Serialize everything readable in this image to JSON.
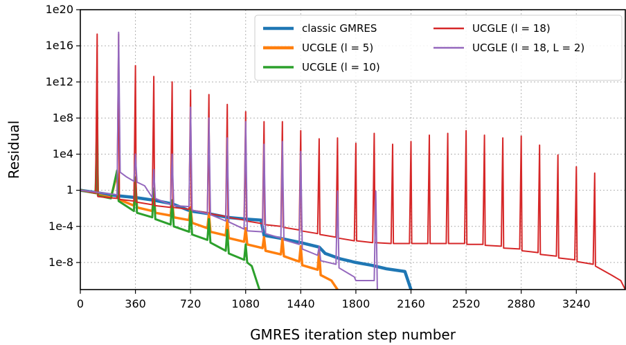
{
  "chart_data": {
    "type": "line",
    "title": "",
    "xlabel": "GMRES iteration step number",
    "ylabel": "Residual",
    "x_scale": "linear",
    "y_scale": "log",
    "xlim": [
      0,
      3560
    ],
    "ylim_log10": [
      -11,
      20
    ],
    "grid": true,
    "legend_position": "top-right",
    "xticks": [
      {
        "value": 0,
        "label": "0"
      },
      {
        "value": 360,
        "label": "360"
      },
      {
        "value": 720,
        "label": "720"
      },
      {
        "value": 1080,
        "label": "1080"
      },
      {
        "value": 1440,
        "label": "1440"
      },
      {
        "value": 1800,
        "label": "1800"
      },
      {
        "value": 2160,
        "label": "2160"
      },
      {
        "value": 2520,
        "label": "2520"
      },
      {
        "value": 2880,
        "label": "2880"
      },
      {
        "value": 3240,
        "label": "3240"
      }
    ],
    "yticks": [
      {
        "log10": 20,
        "label": "1e20"
      },
      {
        "log10": 16,
        "label": "1e16"
      },
      {
        "log10": 12,
        "label": "1e12"
      },
      {
        "log10": 8,
        "label": "1e8"
      },
      {
        "log10": 4,
        "label": "1e4"
      },
      {
        "log10": 0,
        "label": "1"
      },
      {
        "log10": -4,
        "label": "1e-4"
      },
      {
        "log10": -8,
        "label": "1e-8"
      }
    ],
    "series": [
      {
        "name": "classic GMRES",
        "color": "#1f77b4",
        "stroke_width": 4.5,
        "points_log10": [
          [
            0,
            0
          ],
          [
            120,
            -0.3
          ],
          [
            240,
            -0.6
          ],
          [
            360,
            -0.8
          ],
          [
            480,
            -1.1
          ],
          [
            600,
            -1.5
          ],
          [
            720,
            -2.3
          ],
          [
            840,
            -2.6
          ],
          [
            960,
            -3.0
          ],
          [
            1080,
            -3.2
          ],
          [
            1180,
            -3.3
          ],
          [
            1200,
            -5.0
          ],
          [
            1300,
            -5.3
          ],
          [
            1440,
            -5.8
          ],
          [
            1560,
            -6.3
          ],
          [
            1600,
            -7.0
          ],
          [
            1700,
            -7.6
          ],
          [
            1800,
            -8.0
          ],
          [
            1900,
            -8.3
          ],
          [
            2000,
            -8.7
          ],
          [
            2120,
            -9.0
          ],
          [
            2160,
            -11
          ]
        ]
      },
      {
        "name": "UCGLE (l = 5)",
        "color": "#ff7f0e",
        "stroke_width": 3.5,
        "points_log10": [
          [
            0,
            0
          ],
          [
            100,
            -0.3
          ],
          [
            110,
            3.5
          ],
          [
            115,
            -0.5
          ],
          [
            200,
            -0.8
          ],
          [
            240,
            1.8
          ],
          [
            250,
            -1.0
          ],
          [
            350,
            -1.7
          ],
          [
            360,
            0.5
          ],
          [
            370,
            -1.9
          ],
          [
            470,
            -2.3
          ],
          [
            480,
            -0.8
          ],
          [
            490,
            -2.5
          ],
          [
            590,
            -2.8
          ],
          [
            600,
            -1.2
          ],
          [
            610,
            -3.0
          ],
          [
            710,
            -3.3
          ],
          [
            720,
            -1.9
          ],
          [
            730,
            -3.6
          ],
          [
            830,
            -4.2
          ],
          [
            840,
            -2.6
          ],
          [
            850,
            -4.6
          ],
          [
            950,
            -5.0
          ],
          [
            960,
            -3.3
          ],
          [
            970,
            -5.3
          ],
          [
            1070,
            -5.7
          ],
          [
            1080,
            -4.2
          ],
          [
            1090,
            -6.0
          ],
          [
            1190,
            -6.4
          ],
          [
            1200,
            -5.2
          ],
          [
            1210,
            -6.7
          ],
          [
            1310,
            -7.1
          ],
          [
            1320,
            -5.4
          ],
          [
            1330,
            -7.3
          ],
          [
            1430,
            -7.9
          ],
          [
            1440,
            -6.2
          ],
          [
            1450,
            -8.3
          ],
          [
            1550,
            -8.8
          ],
          [
            1560,
            -6.8
          ],
          [
            1570,
            -9.4
          ],
          [
            1640,
            -10.0
          ],
          [
            1680,
            -11
          ]
        ]
      },
      {
        "name": "UCGLE (l = 10)",
        "color": "#2ca02c",
        "stroke_width": 3.0,
        "points_log10": [
          [
            0,
            0
          ],
          [
            100,
            -0.3
          ],
          [
            110,
            8.8
          ],
          [
            115,
            -0.6
          ],
          [
            200,
            -0.9
          ],
          [
            240,
            2.2
          ],
          [
            250,
            -1.2
          ],
          [
            350,
            -2.3
          ],
          [
            360,
            1.4
          ],
          [
            370,
            -2.5
          ],
          [
            470,
            -3.0
          ],
          [
            480,
            0.2
          ],
          [
            490,
            -3.2
          ],
          [
            590,
            -3.8
          ],
          [
            600,
            -1.1
          ],
          [
            610,
            -4.0
          ],
          [
            710,
            -4.6
          ],
          [
            720,
            -2.1
          ],
          [
            730,
            -4.9
          ],
          [
            830,
            -5.5
          ],
          [
            840,
            -3.2
          ],
          [
            850,
            -5.8
          ],
          [
            950,
            -6.7
          ],
          [
            960,
            -4.4
          ],
          [
            970,
            -7.0
          ],
          [
            1070,
            -7.7
          ],
          [
            1080,
            -6.0
          ],
          [
            1090,
            -8.0
          ],
          [
            1120,
            -8.4
          ],
          [
            1170,
            -11
          ]
        ]
      },
      {
        "name": "UCGLE (l = 18)",
        "color": "#d62728",
        "stroke_width": 2.0,
        "points_log10": [
          [
            0,
            0
          ],
          [
            100,
            -0.3
          ],
          [
            110,
            17.3
          ],
          [
            115,
            -0.7
          ],
          [
            240,
            -0.9
          ],
          [
            250,
            17.3
          ],
          [
            255,
            -1.0
          ],
          [
            350,
            -1.2
          ],
          [
            360,
            13.8
          ],
          [
            365,
            -1.3
          ],
          [
            470,
            -1.6
          ],
          [
            480,
            12.6
          ],
          [
            485,
            -1.7
          ],
          [
            590,
            -1.9
          ],
          [
            600,
            12.0
          ],
          [
            605,
            -1.9
          ],
          [
            710,
            -2.1
          ],
          [
            720,
            11.1
          ],
          [
            725,
            -2.2
          ],
          [
            830,
            -2.5
          ],
          [
            840,
            10.6
          ],
          [
            845,
            -2.6
          ],
          [
            950,
            -2.9
          ],
          [
            960,
            9.5
          ],
          [
            965,
            -3.0
          ],
          [
            1070,
            -3.3
          ],
          [
            1080,
            8.7
          ],
          [
            1085,
            -3.4
          ],
          [
            1190,
            -3.7
          ],
          [
            1200,
            7.6
          ],
          [
            1205,
            -3.8
          ],
          [
            1310,
            -4.0
          ],
          [
            1320,
            7.6
          ],
          [
            1325,
            -4.1
          ],
          [
            1430,
            -4.4
          ],
          [
            1440,
            6.6
          ],
          [
            1445,
            -4.5
          ],
          [
            1550,
            -4.8
          ],
          [
            1560,
            5.7
          ],
          [
            1565,
            -4.9
          ],
          [
            1670,
            -5.2
          ],
          [
            1680,
            5.8
          ],
          [
            1685,
            -5.3
          ],
          [
            1790,
            -5.6
          ],
          [
            1800,
            5.2
          ],
          [
            1805,
            -5.6
          ],
          [
            1910,
            -5.8
          ],
          [
            1920,
            6.3
          ],
          [
            1925,
            -5.8
          ],
          [
            2030,
            -5.9
          ],
          [
            2040,
            5.1
          ],
          [
            2045,
            -5.9
          ],
          [
            2150,
            -5.9
          ],
          [
            2160,
            5.4
          ],
          [
            2165,
            -5.9
          ],
          [
            2270,
            -5.9
          ],
          [
            2280,
            6.1
          ],
          [
            2285,
            -5.9
          ],
          [
            2390,
            -5.9
          ],
          [
            2400,
            6.3
          ],
          [
            2405,
            -5.9
          ],
          [
            2510,
            -5.9
          ],
          [
            2520,
            6.6
          ],
          [
            2525,
            -6.0
          ],
          [
            2630,
            -6.0
          ],
          [
            2640,
            6.1
          ],
          [
            2645,
            -6.1
          ],
          [
            2750,
            -6.2
          ],
          [
            2760,
            5.8
          ],
          [
            2765,
            -6.4
          ],
          [
            2870,
            -6.5
          ],
          [
            2880,
            6.0
          ],
          [
            2885,
            -6.7
          ],
          [
            2990,
            -6.9
          ],
          [
            3000,
            5.0
          ],
          [
            3005,
            -7.1
          ],
          [
            3110,
            -7.3
          ],
          [
            3120,
            3.9
          ],
          [
            3125,
            -7.5
          ],
          [
            3230,
            -7.7
          ],
          [
            3240,
            2.6
          ],
          [
            3245,
            -7.9
          ],
          [
            3350,
            -8.2
          ],
          [
            3360,
            1.9
          ],
          [
            3365,
            -8.4
          ],
          [
            3470,
            -9.4
          ],
          [
            3530,
            -10.0
          ],
          [
            3560,
            -11
          ]
        ]
      },
      {
        "name": "UCGLE (l = 18, L = 2)",
        "color": "#9467bd",
        "stroke_width": 2.0,
        "points_log10": [
          [
            0,
            0
          ],
          [
            100,
            -0.2
          ],
          [
            240,
            -0.5
          ],
          [
            250,
            17.5
          ],
          [
            260,
            2.0
          ],
          [
            300,
            1.5
          ],
          [
            350,
            1.0
          ],
          [
            360,
            4.0
          ],
          [
            370,
            0.9
          ],
          [
            420,
            0.5
          ],
          [
            470,
            -0.8
          ],
          [
            480,
            2.3
          ],
          [
            490,
            -0.9
          ],
          [
            590,
            -1.6
          ],
          [
            600,
            4.0
          ],
          [
            610,
            -1.7
          ],
          [
            710,
            -1.8
          ],
          [
            720,
            9.2
          ],
          [
            730,
            -2.2
          ],
          [
            830,
            -2.6
          ],
          [
            840,
            8.0
          ],
          [
            850,
            -2.7
          ],
          [
            950,
            -3.4
          ],
          [
            960,
            5.8
          ],
          [
            970,
            -3.5
          ],
          [
            1070,
            -4.3
          ],
          [
            1080,
            7.6
          ],
          [
            1090,
            -4.5
          ],
          [
            1190,
            -4.6
          ],
          [
            1200,
            5.1
          ],
          [
            1210,
            -4.8
          ],
          [
            1310,
            -5.3
          ],
          [
            1320,
            5.4
          ],
          [
            1330,
            -5.5
          ],
          [
            1430,
            -6.0
          ],
          [
            1440,
            4.3
          ],
          [
            1450,
            -6.5
          ],
          [
            1550,
            -7.2
          ],
          [
            1560,
            -6.2
          ],
          [
            1570,
            -7.8
          ],
          [
            1670,
            -8.2
          ],
          [
            1680,
            -0.1
          ],
          [
            1690,
            -8.6
          ],
          [
            1790,
            -9.6
          ],
          [
            1800,
            -10.0
          ],
          [
            1920,
            -10.0
          ],
          [
            1930,
            -0.1
          ],
          [
            1940,
            -11
          ]
        ]
      }
    ]
  },
  "legend": {
    "entries": [
      {
        "name": "classic GMRES",
        "label": "classic GMRES",
        "color": "#1f77b4",
        "stroke_width": 4.5
      },
      {
        "name": "UCGLE (l = 5)",
        "label": "UCGLE (l = 5)",
        "color": "#ff7f0e",
        "stroke_width": 4.5
      },
      {
        "name": "UCGLE (l = 10)",
        "label": "UCGLE (l = 10)",
        "color": "#2ca02c",
        "stroke_width": 3.5
      },
      {
        "name": "UCGLE (l = 18)",
        "label": "UCGLE (l = 18)",
        "color": "#d62728",
        "stroke_width": 2.5
      },
      {
        "name": "UCGLE (l = 18, L = 2)",
        "label": "UCGLE (l = 18, L = 2)",
        "color": "#9467bd",
        "stroke_width": 2.5
      }
    ]
  }
}
